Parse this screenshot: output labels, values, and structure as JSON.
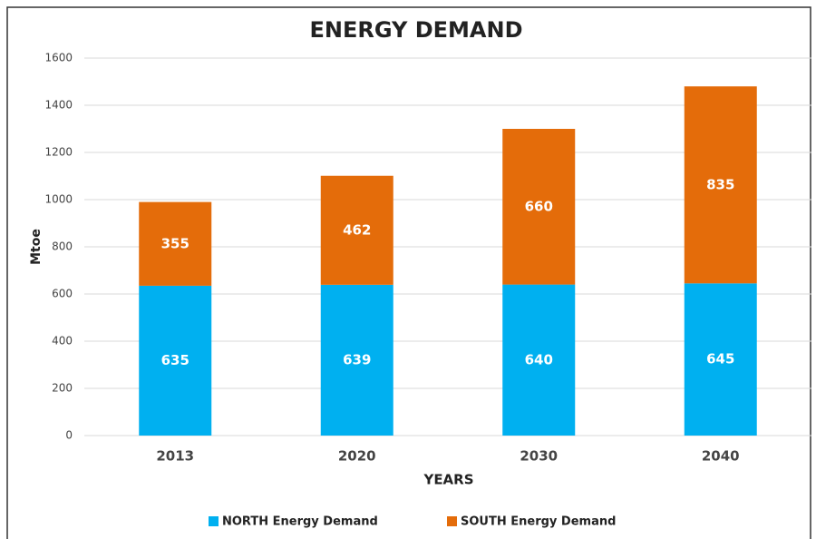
{
  "chart_data": {
    "type": "bar",
    "stacked": true,
    "title": "ENERGY DEMAND",
    "x_label": "YEARS",
    "y_label": "Mtoe",
    "categories": [
      "2013",
      "2020",
      "2030",
      "2040"
    ],
    "series": [
      {
        "name": "NORTH Energy Demand",
        "color": "#00b0f0",
        "values": [
          635,
          639,
          640,
          645
        ]
      },
      {
        "name": "SOUTH Energy Demand",
        "color": "#e46c0a",
        "values": [
          355,
          462,
          660,
          835
        ]
      }
    ],
    "ylim": [
      0,
      1600
    ],
    "yticks": [
      0,
      200,
      400,
      600,
      800,
      1000,
      1200,
      1400,
      1600
    ],
    "grid": true,
    "legend": "bottom"
  }
}
